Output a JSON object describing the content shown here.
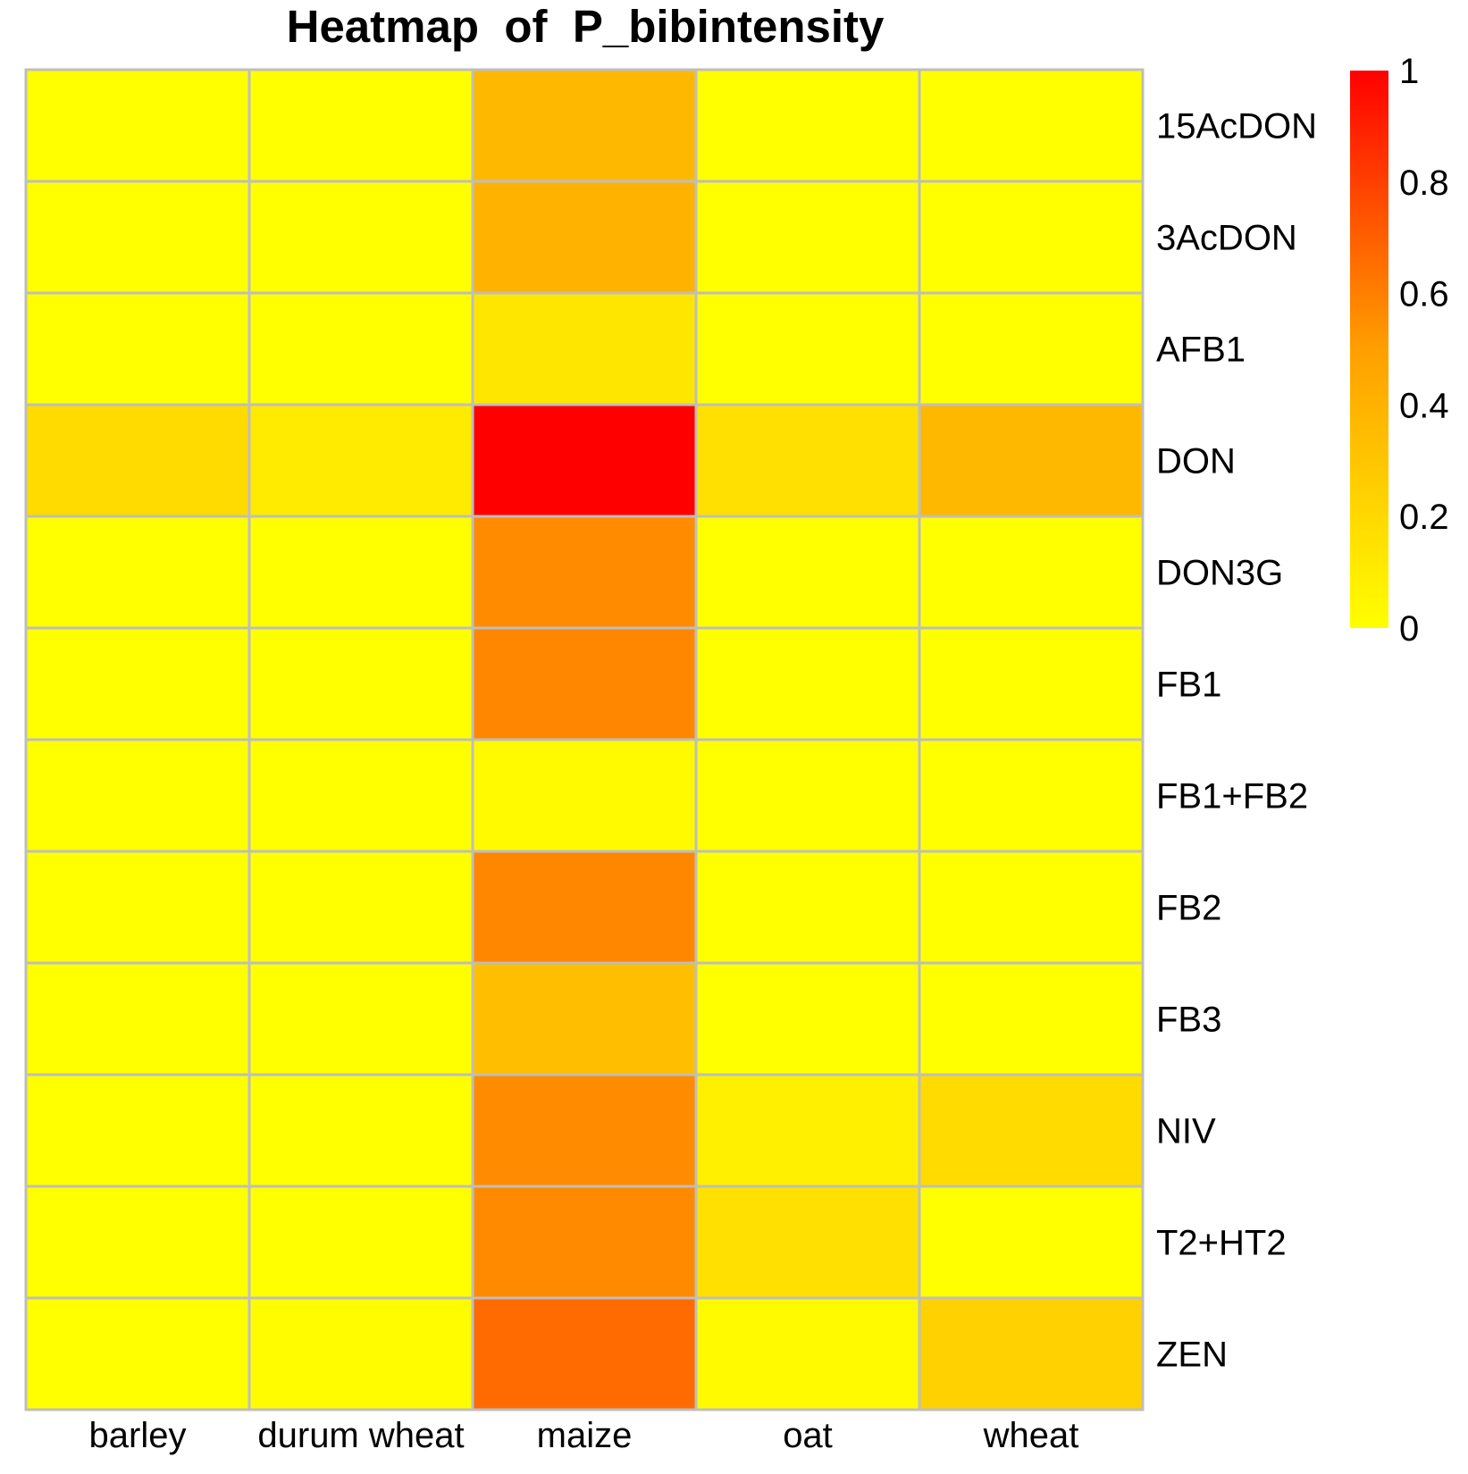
{
  "chart_data": {
    "type": "heatmap",
    "title": "Heatmap  of  P_bibintensity",
    "columns": [
      "barley",
      "durum wheat",
      "maize",
      "oat",
      "wheat"
    ],
    "rows": [
      "15AcDON",
      "3AcDON",
      "AFB1",
      "DON",
      "DON3G",
      "FB1",
      "FB1+FB2",
      "FB2",
      "FB3",
      "NIV",
      "T2+HT2",
      "ZEN"
    ],
    "values": [
      [
        0.0,
        0.0,
        0.28,
        0.0,
        0.0
      ],
      [
        0.0,
        0.0,
        0.3,
        0.0,
        0.0
      ],
      [
        0.0,
        0.0,
        0.1,
        0.0,
        0.0
      ],
      [
        0.14,
        0.08,
        1.0,
        0.12,
        0.28
      ],
      [
        0.0,
        0.0,
        0.45,
        0.0,
        0.0
      ],
      [
        0.0,
        0.0,
        0.47,
        0.0,
        0.0
      ],
      [
        0.0,
        0.0,
        0.02,
        0.0,
        0.0
      ],
      [
        0.0,
        0.0,
        0.47,
        0.0,
        0.0
      ],
      [
        0.0,
        0.0,
        0.25,
        0.0,
        0.0
      ],
      [
        0.0,
        0.0,
        0.45,
        0.06,
        0.14
      ],
      [
        0.0,
        0.0,
        0.46,
        0.12,
        0.0
      ],
      [
        0.0,
        0.01,
        0.58,
        0.02,
        0.18
      ]
    ],
    "legend": {
      "ticks": [
        "1",
        "0.8",
        "0.6",
        "0.4",
        "0.2",
        "0"
      ],
      "min": 0,
      "max": 1,
      "color_low": "#FFFF00",
      "color_high": "#FF0000"
    },
    "grid_color": "#BEBEBE",
    "grid": true
  }
}
